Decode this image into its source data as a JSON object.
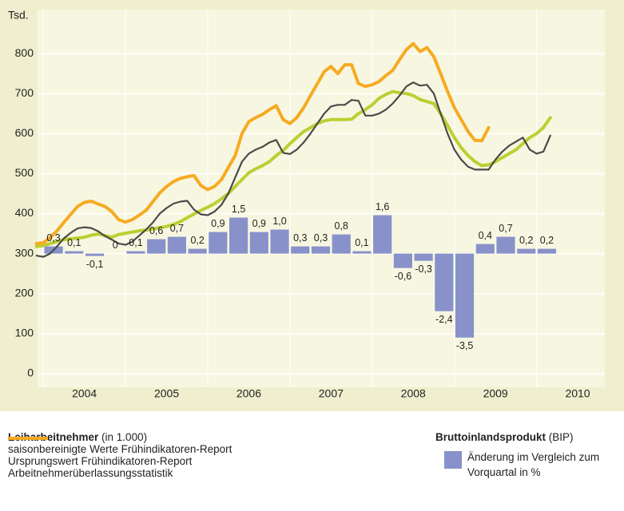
{
  "chart_data": {
    "type": "line",
    "y_label": "Tsd.",
    "xlim": [
      2003.93,
      2010.83
    ],
    "xticks": [
      2004,
      2005,
      2006,
      2007,
      2008,
      2009,
      2010
    ],
    "ylim": [
      -34,
      910
    ],
    "yticks": [
      0,
      100,
      200,
      300,
      400,
      500,
      600,
      700,
      800
    ],
    "y2lim": [
      -5.57,
      10.17
    ],
    "grid": true,
    "legend_title": "Leiharbeitnehmer",
    "legend_subtitle": "(in 1.000)",
    "bar_legend_title": "Bruttoinlandsprodukt",
    "bar_legend_subtitle": "(BIP)",
    "x": [
      2003.917,
      2004,
      2004.083,
      2004.167,
      2004.25,
      2004.333,
      2004.417,
      2004.5,
      2004.583,
      2004.667,
      2004.75,
      2004.833,
      2004.917,
      2005,
      2005.083,
      2005.167,
      2005.25,
      2005.333,
      2005.417,
      2005.5,
      2005.583,
      2005.667,
      2005.75,
      2005.833,
      2005.917,
      2006,
      2006.083,
      2006.167,
      2006.25,
      2006.333,
      2006.417,
      2006.5,
      2006.583,
      2006.667,
      2006.75,
      2006.833,
      2006.917,
      2007,
      2007.083,
      2007.167,
      2007.25,
      2007.333,
      2007.417,
      2007.5,
      2007.583,
      2007.667,
      2007.75,
      2007.833,
      2007.917,
      2008,
      2008.083,
      2008.167,
      2008.25,
      2008.333,
      2008.417,
      2008.5,
      2008.583,
      2008.667,
      2008.75,
      2008.833,
      2008.917,
      2009,
      2009.083,
      2009.167,
      2009.25,
      2009.333,
      2009.417,
      2009.5,
      2009.583,
      2009.667,
      2009.75,
      2009.833,
      2009.917,
      2010,
      2010.083,
      2010.167
    ],
    "series": [
      {
        "name": "saisonbereinigte Werte Frühindikatoren-Report",
        "color": "#bccf32",
        "values": [
          318,
          320,
          325,
          330,
          335,
          337,
          339,
          341,
          346,
          349,
          345,
          341,
          348,
          351,
          354,
          357,
          359,
          362,
          365,
          368,
          373,
          380,
          390,
          399,
          408,
          416,
          425,
          437,
          450,
          468,
          485,
          502,
          512,
          520,
          530,
          545,
          558,
          575,
          590,
          605,
          615,
          625,
          632,
          635,
          635,
          635,
          636,
          650,
          660,
          672,
          688,
          698,
          705,
          702,
          700,
          695,
          685,
          680,
          675,
          650,
          620,
          590,
          565,
          545,
          530,
          520,
          522,
          530,
          540,
          550,
          560,
          575,
          590,
          600,
          615,
          640
        ]
      },
      {
        "name": "Ursprungswert Frühindikatoren-Report",
        "color": "#4a4a4a",
        "values": [
          295,
          292,
          300,
          318,
          338,
          352,
          363,
          366,
          364,
          356,
          344,
          335,
          325,
          322,
          330,
          345,
          360,
          378,
          400,
          414,
          425,
          430,
          432,
          410,
          398,
          396,
          405,
          422,
          450,
          490,
          530,
          550,
          560,
          567,
          578,
          584,
          552,
          549,
          560,
          578,
          600,
          625,
          650,
          668,
          672,
          672,
          684,
          682,
          645,
          645,
          650,
          660,
          675,
          695,
          718,
          728,
          720,
          722,
          700,
          650,
          600,
          560,
          535,
          517,
          510,
          510,
          510,
          535,
          555,
          570,
          580,
          590,
          560,
          550,
          555,
          595
        ]
      },
      {
        "name": "Arbeitnehmerüberlassungsstatistik",
        "color": "#f7aa22",
        "values": [
          325,
          327,
          340,
          357,
          378,
          398,
          418,
          428,
          431,
          424,
          418,
          405,
          385,
          379,
          385,
          396,
          408,
          430,
          452,
          468,
          480,
          488,
          492,
          495,
          470,
          460,
          468,
          485,
          515,
          545,
          600,
          630,
          640,
          648,
          660,
          670,
          635,
          625,
          640,
          665,
          695,
          725,
          755,
          768,
          750,
          772,
          772,
          725,
          718,
          722,
          730,
          745,
          758,
          785,
          810,
          825,
          805,
          815,
          792,
          750,
          705,
          665,
          635,
          605,
          583,
          582,
          615,
          null,
          null,
          null,
          null,
          null,
          null,
          null,
          null,
          null
        ]
      },
      {
        "name": "Änderung im Vergleich zum Vorquartal in %",
        "type": "bar",
        "axis": "y2",
        "color": "#8891c9",
        "x": [
          2004.125,
          2004.375,
          2004.625,
          2004.875,
          2005.125,
          2005.375,
          2005.625,
          2005.875,
          2006.125,
          2006.375,
          2006.625,
          2006.875,
          2007.125,
          2007.375,
          2007.625,
          2007.875,
          2008.125,
          2008.375,
          2008.625,
          2008.875,
          2009.125,
          2009.375,
          2009.625,
          2009.875,
          2010.125
        ],
        "values": [
          0.3,
          0.1,
          -0.1,
          0,
          0.1,
          0.6,
          0.7,
          0.2,
          0.9,
          1.5,
          0.9,
          1.0,
          0.3,
          0.3,
          0.8,
          0.1,
          1.6,
          -0.6,
          -0.3,
          -2.4,
          -3.5,
          0.4,
          0.7,
          0.2,
          0.2
        ],
        "value_labels": [
          "0,3",
          "0,1",
          "-0,1",
          "0",
          "0,1",
          "0,6",
          "0,7",
          "0,2",
          "0,9",
          "1,5",
          "0,9",
          "1,0",
          "0,3",
          "0,3",
          "0,8",
          "0,1",
          "1,6",
          "-0,6",
          "-0,3",
          "-2,4",
          "-3,5",
          "0,4",
          "0,7",
          "0,2",
          "0,2"
        ]
      }
    ]
  }
}
